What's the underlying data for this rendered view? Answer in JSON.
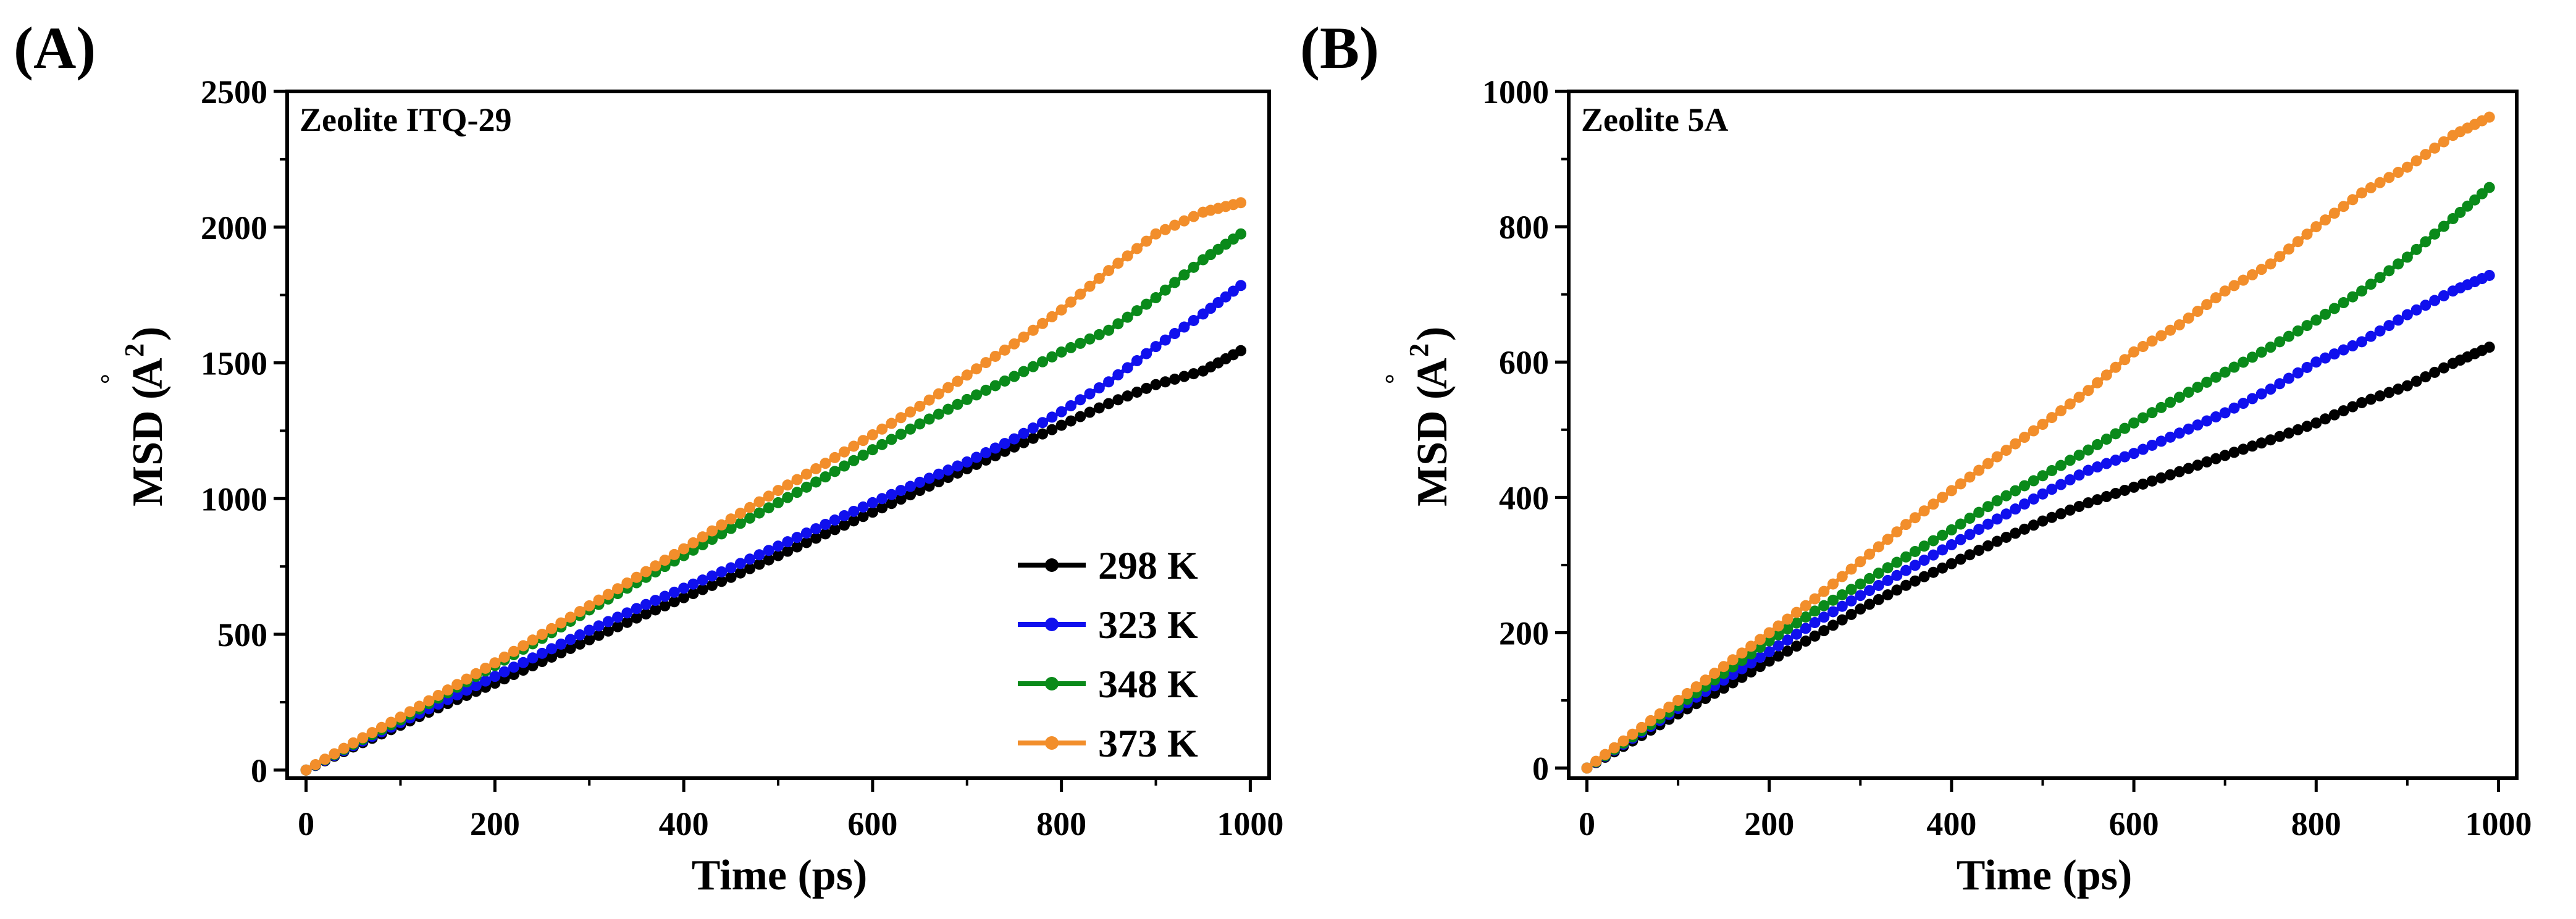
{
  "chart_data": [
    {
      "panel_label": "(A)",
      "type": "line",
      "inset_title": "Zeolite ITQ-29",
      "xlabel": "Time (ps)",
      "ylabel": "MSD (Å²)",
      "ylabel_main": "MSD (",
      "ylabel_ring": "°",
      "ylabel_A": "A",
      "ylabel_sup": "2",
      "ylabel_close": ")",
      "xlim": [
        -20,
        1020
      ],
      "ylim": [
        -30,
        2500
      ],
      "xticks": [
        "0",
        "200",
        "400",
        "600",
        "800",
        "1000"
      ],
      "yticks": [
        "0",
        "500",
        "1000",
        "1500",
        "2000",
        "2500"
      ],
      "legend_position": "bottom-right",
      "grid": false,
      "series": [
        {
          "name": "298 K",
          "color": "#000000",
          "x": [
            0,
            50,
            100,
            150,
            200,
            250,
            300,
            350,
            400,
            450,
            500,
            550,
            600,
            650,
            700,
            750,
            800,
            850,
            900,
            950,
            990
          ],
          "y": [
            0,
            85,
            165,
            245,
            320,
            400,
            480,
            560,
            635,
            710,
            790,
            870,
            950,
            1030,
            1110,
            1190,
            1270,
            1350,
            1420,
            1470,
            1545
          ]
        },
        {
          "name": "323 K",
          "color": "#1010ee",
          "x": [
            0,
            50,
            100,
            150,
            200,
            250,
            300,
            350,
            400,
            450,
            500,
            550,
            600,
            650,
            700,
            750,
            800,
            850,
            900,
            950,
            990
          ],
          "y": [
            0,
            90,
            175,
            260,
            345,
            430,
            515,
            595,
            670,
            745,
            825,
            905,
            985,
            1060,
            1135,
            1220,
            1320,
            1430,
            1560,
            1680,
            1785
          ]
        },
        {
          "name": "348 K",
          "color": "#0a8a1a",
          "x": [
            0,
            50,
            100,
            150,
            200,
            250,
            300,
            350,
            400,
            450,
            500,
            550,
            600,
            650,
            700,
            750,
            800,
            850,
            900,
            950,
            990
          ],
          "y": [
            0,
            95,
            185,
            285,
            385,
            485,
            590,
            690,
            790,
            890,
            985,
            1080,
            1180,
            1275,
            1365,
            1450,
            1540,
            1620,
            1740,
            1880,
            1975
          ]
        },
        {
          "name": "373 K",
          "color": "#f28e2b",
          "x": [
            0,
            50,
            100,
            150,
            200,
            250,
            300,
            350,
            400,
            450,
            500,
            550,
            600,
            650,
            700,
            750,
            800,
            850,
            900,
            950,
            990
          ],
          "y": [
            0,
            100,
            195,
            295,
            395,
            500,
            605,
            710,
            815,
            925,
            1030,
            1130,
            1235,
            1340,
            1455,
            1570,
            1695,
            1840,
            1975,
            2055,
            2090
          ]
        }
      ]
    },
    {
      "panel_label": "(B)",
      "type": "line",
      "inset_title": "Zeolite 5A",
      "xlabel": "Time (ps)",
      "ylabel": "MSD (Å²)",
      "ylabel_main": "MSD (",
      "ylabel_ring": "°",
      "ylabel_A": "A",
      "ylabel_sup": "2",
      "ylabel_close": ")",
      "xlim": [
        -20,
        1020
      ],
      "ylim": [
        -15,
        1000
      ],
      "xticks": [
        "0",
        "200",
        "400",
        "600",
        "800",
        "1000"
      ],
      "yticks": [
        "0",
        "200",
        "400",
        "600",
        "800",
        "1000"
      ],
      "grid": false,
      "series": [
        {
          "name": "298 K",
          "color": "#000000",
          "x": [
            0,
            50,
            100,
            150,
            200,
            250,
            300,
            350,
            400,
            450,
            500,
            550,
            600,
            650,
            700,
            750,
            800,
            850,
            900,
            950,
            990
          ],
          "y": [
            0,
            40,
            80,
            118,
            158,
            195,
            235,
            270,
            302,
            335,
            365,
            392,
            415,
            438,
            462,
            485,
            510,
            540,
            565,
            598,
            622
          ]
        },
        {
          "name": "323 K",
          "color": "#1010ee",
          "x": [
            0,
            50,
            100,
            150,
            200,
            250,
            300,
            350,
            400,
            450,
            500,
            550,
            600,
            650,
            700,
            750,
            800,
            850,
            900,
            950,
            990
          ],
          "y": [
            0,
            44,
            88,
            130,
            172,
            215,
            255,
            292,
            330,
            368,
            405,
            440,
            465,
            495,
            525,
            560,
            600,
            630,
            670,
            705,
            728
          ]
        },
        {
          "name": "348 K",
          "color": "#0a8a1a",
          "x": [
            0,
            50,
            100,
            150,
            200,
            250,
            300,
            350,
            400,
            450,
            500,
            550,
            600,
            650,
            700,
            750,
            800,
            850,
            900,
            950,
            990
          ],
          "y": [
            0,
            46,
            92,
            140,
            188,
            232,
            272,
            312,
            352,
            395,
            432,
            470,
            510,
            548,
            585,
            622,
            662,
            705,
            755,
            812,
            858
          ]
        },
        {
          "name": "373 K",
          "color": "#f28e2b",
          "x": [
            0,
            50,
            100,
            150,
            200,
            250,
            300,
            350,
            400,
            450,
            500,
            550,
            600,
            650,
            700,
            750,
            800,
            850,
            900,
            950,
            990
          ],
          "y": [
            0,
            50,
            100,
            150,
            200,
            250,
            305,
            360,
            410,
            460,
            508,
            558,
            615,
            655,
            705,
            745,
            800,
            850,
            888,
            935,
            962
          ]
        }
      ]
    }
  ]
}
